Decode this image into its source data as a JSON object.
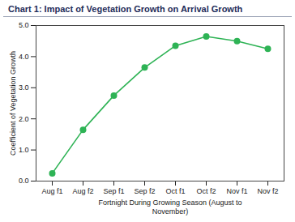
{
  "chart_data": {
    "type": "line",
    "title": "Chart 1: Impact of Vegetation Growth on Arrival Growth",
    "xlabel": "Fortnight During Growing Season (August to November)",
    "ylabel": "Coefficient of Vegetation Growth",
    "categories": [
      "Aug f1",
      "Aug f2",
      "Sep f1",
      "Sep f2",
      "Oct f1",
      "Oct f2",
      "Nov f1",
      "Nov f2"
    ],
    "values": [
      0.25,
      1.65,
      2.75,
      3.65,
      4.35,
      4.65,
      4.5,
      4.25
    ],
    "color": "#2eb355",
    "marker": "circle",
    "ylim": [
      0,
      5
    ],
    "yticks": [
      0,
      1,
      2,
      3,
      4,
      5
    ],
    "grid": false
  }
}
